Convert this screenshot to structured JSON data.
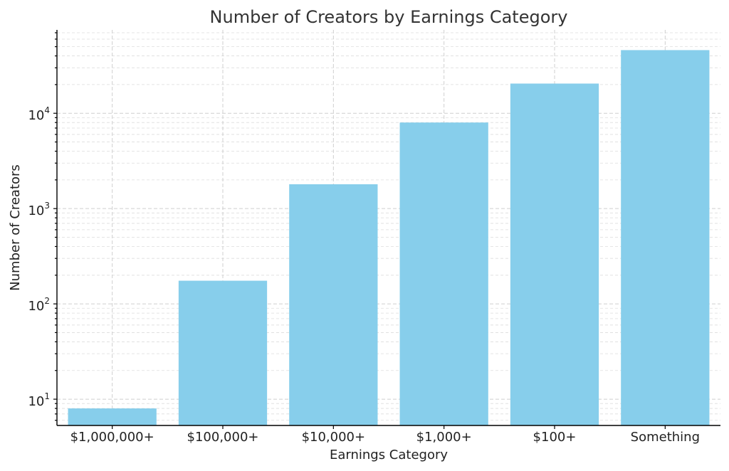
{
  "chart_data": {
    "type": "bar",
    "title": "Number of Creators by Earnings Category",
    "xlabel": "Earnings Category",
    "ylabel": "Number of Creators",
    "categories": [
      "$1,000,000+",
      "$100,000+",
      "$10,000+",
      "$1,000+",
      "$100+",
      "Something"
    ],
    "values": [
      8,
      175,
      1800,
      8000,
      20500,
      46000
    ],
    "y_scale": "log",
    "ylim": [
      5.3,
      75000
    ],
    "y_tick_labels": [
      {
        "base": "10",
        "exp": "1",
        "value": 10
      },
      {
        "base": "10",
        "exp": "2",
        "value": 100
      },
      {
        "base": "10",
        "exp": "3",
        "value": 1000
      },
      {
        "base": "10",
        "exp": "4",
        "value": 10000
      }
    ],
    "grid": true,
    "bar_color": "#87ceeb"
  }
}
